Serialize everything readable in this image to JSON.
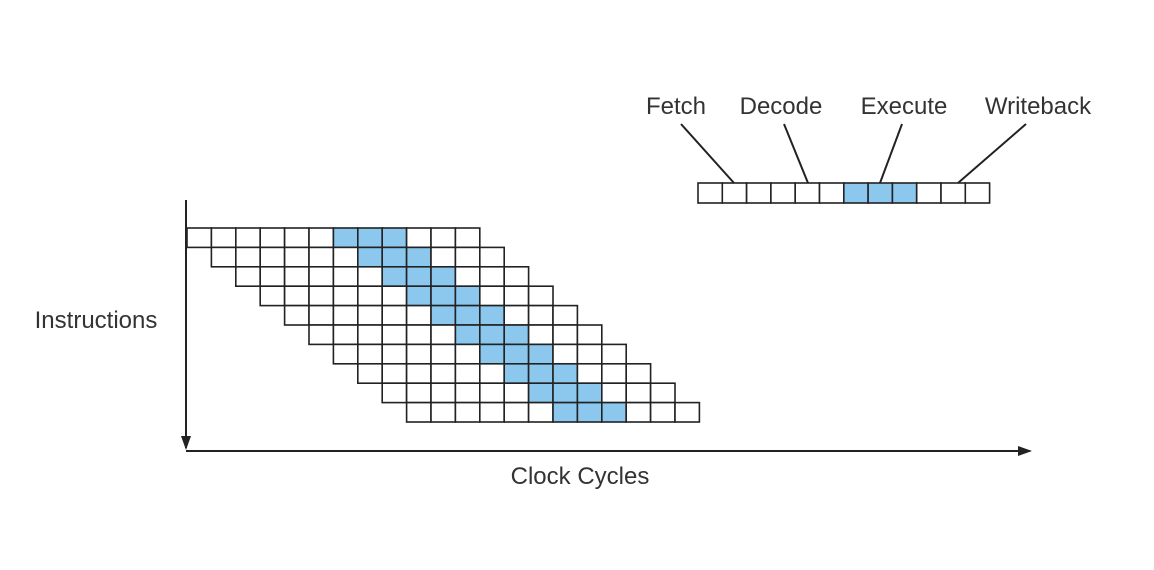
{
  "diagram": {
    "y_axis_label": "Instructions",
    "x_axis_label": "Clock Cycles",
    "legend": {
      "stage_labels": [
        "Fetch",
        "Decode",
        "Execute",
        "Writeback"
      ],
      "cells_per_instruction": 12,
      "highlighted_cells": [
        6,
        7,
        8
      ]
    },
    "pipeline": {
      "instructions": 10,
      "cells_per_instruction": 12,
      "offset_per_instruction": 1,
      "highlighted_cells": [
        6,
        7,
        8
      ]
    },
    "colors": {
      "highlight": "#8cc8ee",
      "cell": "#ffffff",
      "stroke": "#222222",
      "axis": "#222222",
      "text": "#333333"
    }
  }
}
